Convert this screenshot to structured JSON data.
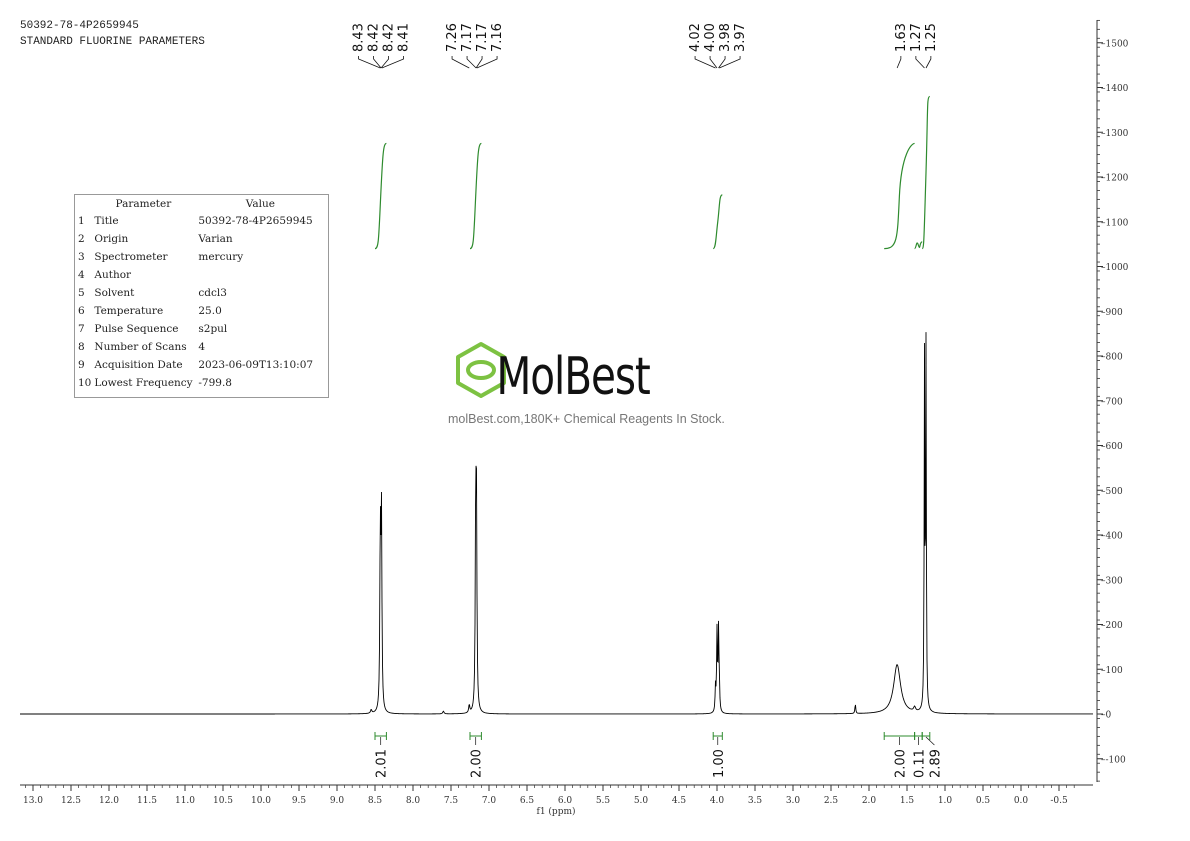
{
  "header": {
    "sample_id": "50392-78-4P2659945",
    "experiment": "STANDARD FLUORINE PARAMETERS"
  },
  "parameters": {
    "col_parameter": "Parameter",
    "col_value": "Value",
    "rows": [
      {
        "n": "1",
        "name": "Title",
        "value": "50392-78-4P2659945"
      },
      {
        "n": "2",
        "name": "Origin",
        "value": "Varian"
      },
      {
        "n": "3",
        "name": "Spectrometer",
        "value": "mercury"
      },
      {
        "n": "4",
        "name": "Author",
        "value": ""
      },
      {
        "n": "5",
        "name": "Solvent",
        "value": "cdcl3"
      },
      {
        "n": "6",
        "name": "Temperature",
        "value": "25.0"
      },
      {
        "n": "7",
        "name": "Pulse Sequence",
        "value": "s2pul"
      },
      {
        "n": "8",
        "name": "Number of Scans",
        "value": "4"
      },
      {
        "n": "9",
        "name": "Acquisition Date",
        "value": "2023-06-09T13:10:07"
      },
      {
        "n": "10",
        "name": "Lowest Frequency",
        "value": "-799.8"
      }
    ]
  },
  "watermark": {
    "brand": "MolBest",
    "tagline": "molBest.com,180K+ Chemical Reagents In Stock.",
    "brand_color": "#7dc242"
  },
  "colors": {
    "spectrum": "#000000",
    "integral": "#2e8b2e",
    "axis": "#333333"
  },
  "chart_data": {
    "type": "line",
    "xlabel": "f1 (ppm)",
    "ylabel": "",
    "xlim": [
      13.0,
      -0.5
    ],
    "ylim": [
      -150,
      1550
    ],
    "x_reversed": true,
    "x_ticks": [
      13.0,
      12.5,
      12.0,
      11.5,
      11.0,
      10.5,
      10.0,
      9.5,
      9.0,
      8.5,
      8.0,
      7.5,
      7.0,
      6.5,
      6.0,
      5.5,
      5.0,
      4.5,
      4.0,
      3.5,
      3.0,
      2.5,
      2.0,
      1.5,
      1.0,
      0.5,
      0.0,
      -0.5
    ],
    "x_tick_labels": [
      "13.0",
      "12.5",
      "12.0",
      "11.5",
      "11.0",
      "10.5",
      "10.0",
      "9.5",
      "9.0",
      "8.5",
      "8.0",
      "7.5",
      "7.0",
      "6.5",
      "6.0",
      "5.5",
      "5.0",
      "4.5",
      "4.0",
      "3.5",
      "3.0",
      "2.5",
      "2.0",
      "1.5",
      "1.0",
      "0.5",
      "0.0",
      "-0.5"
    ],
    "y_ticks": [
      1500,
      1400,
      1300,
      1200,
      1100,
      1000,
      900,
      800,
      700,
      600,
      500,
      400,
      300,
      200,
      100,
      0,
      -100
    ],
    "y_tick_labels": [
      "1500",
      "1400",
      "1300",
      "1200",
      "1100",
      "1000",
      "900",
      "800",
      "700",
      "600",
      "500",
      "400",
      "300",
      "200",
      "100",
      "0",
      "-100"
    ],
    "grid": false,
    "peaks": [
      {
        "ppm": 8.43,
        "height": 405,
        "width": 0.007
      },
      {
        "ppm": 8.415,
        "height": 430,
        "width": 0.007
      },
      {
        "ppm": 7.26,
        "height": 18,
        "width": 0.008
      },
      {
        "ppm": 7.175,
        "height": 410,
        "width": 0.007
      },
      {
        "ppm": 7.165,
        "height": 425,
        "width": 0.007
      },
      {
        "ppm": 4.02,
        "height": 55,
        "width": 0.006
      },
      {
        "ppm": 4.0,
        "height": 180,
        "width": 0.006
      },
      {
        "ppm": 3.98,
        "height": 178,
        "width": 0.006
      },
      {
        "ppm": 3.97,
        "height": 55,
        "width": 0.006
      },
      {
        "ppm": 2.18,
        "height": 22,
        "width": 0.006
      },
      {
        "ppm": 1.63,
        "height": 110,
        "width": 0.055
      },
      {
        "ppm": 1.27,
        "height": 780,
        "width": 0.005
      },
      {
        "ppm": 1.25,
        "height": 805,
        "width": 0.005
      },
      {
        "ppm": 7.6,
        "height": 6,
        "width": 0.01
      },
      {
        "ppm": 8.55,
        "height": 8,
        "width": 0.01
      },
      {
        "ppm": 1.4,
        "height": 10,
        "width": 0.015
      }
    ],
    "peak_label_groups": [
      {
        "labels": [
          "8.43",
          "8.42",
          "8.42",
          "8.41"
        ],
        "ppm": [
          8.43,
          8.42,
          8.42,
          8.41
        ]
      },
      {
        "labels": [
          "7.26",
          "7.17",
          "7.17",
          "7.16"
        ],
        "ppm": [
          7.26,
          7.17,
          7.17,
          7.16
        ]
      },
      {
        "labels": [
          "4.02",
          "4.00",
          "3.98",
          "3.97"
        ],
        "ppm": [
          4.02,
          4.0,
          3.98,
          3.97
        ]
      },
      {
        "labels": [
          "1.63",
          "1.27",
          "1.25"
        ],
        "ppm": [
          1.63,
          1.27,
          1.25
        ]
      }
    ],
    "integrals": [
      {
        "from": 8.5,
        "to": 8.35,
        "value": "2.01",
        "y_start": 1040,
        "y_end": 1275
      },
      {
        "from": 7.25,
        "to": 7.1,
        "value": "2.00",
        "y_start": 1040,
        "y_end": 1275
      },
      {
        "from": 4.05,
        "to": 3.93,
        "value": "1.00",
        "y_start": 1040,
        "y_end": 1160
      },
      {
        "from": 1.8,
        "to": 1.4,
        "value": "2.00",
        "y_start": 1040,
        "y_end": 1275
      },
      {
        "from": 1.4,
        "to": 1.3,
        "value": "0.11",
        "y_start": 1040,
        "y_end": 1055
      },
      {
        "from": 1.3,
        "to": 1.2,
        "value": "2.89",
        "y_start": 1040,
        "y_end": 1380
      }
    ]
  }
}
